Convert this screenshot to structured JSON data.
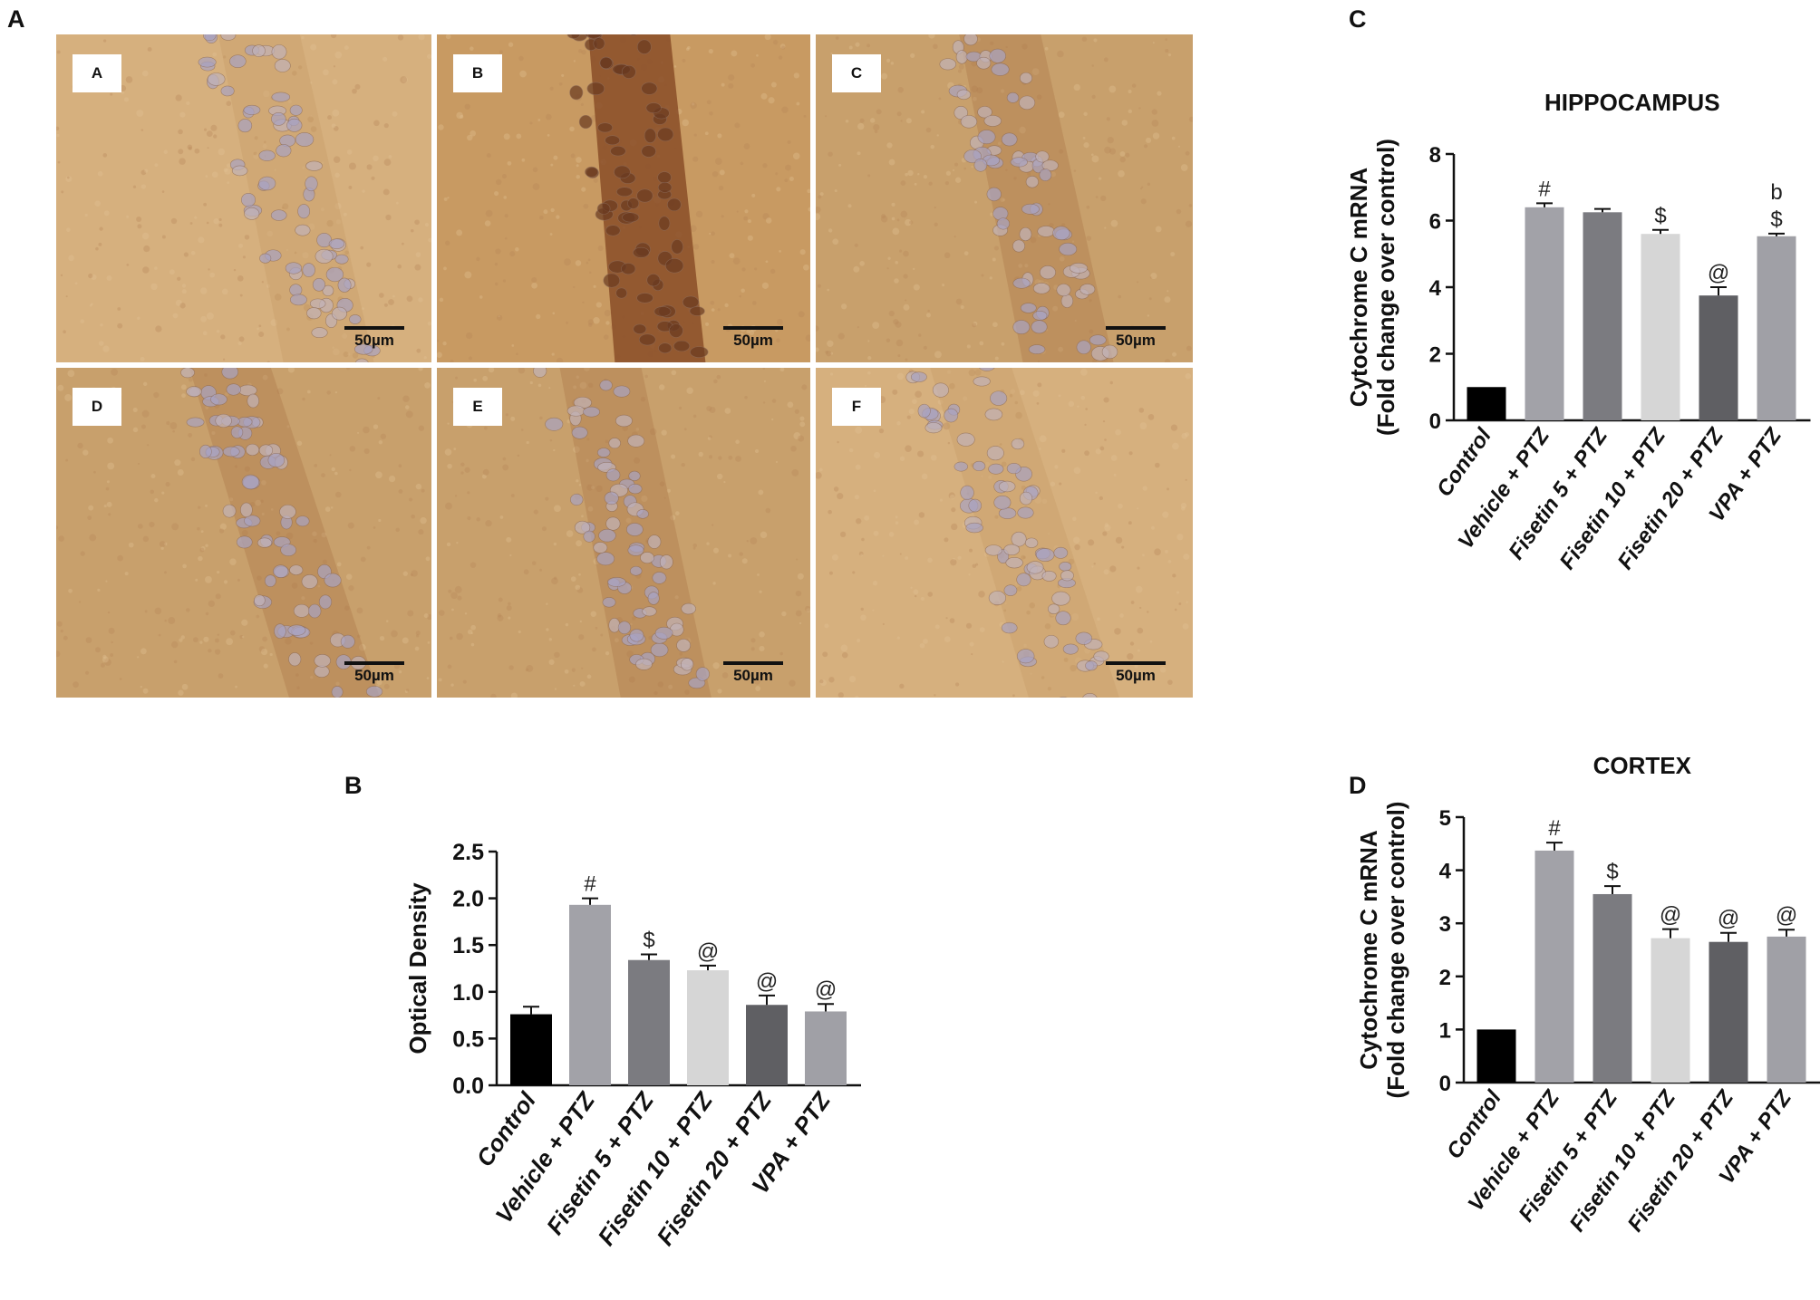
{
  "figure": {
    "panel_labels": [
      "A",
      "B",
      "C",
      "D"
    ]
  },
  "micrographs": [
    {
      "label": "A",
      "scale": "50µm",
      "stain": "light"
    },
    {
      "label": "B",
      "scale": "50µm",
      "stain": "dark"
    },
    {
      "label": "C",
      "scale": "50µm",
      "stain": "medium"
    },
    {
      "label": "D",
      "scale": "50µm",
      "stain": "medium"
    },
    {
      "label": "E",
      "scale": "50µm",
      "stain": "medium"
    },
    {
      "label": "F",
      "scale": "50µm",
      "stain": "light"
    }
  ],
  "colors": {
    "Control": "#000000",
    "Vehicle + PTZ": "#a2a2a8",
    "Fisetin 5 + PTZ": "#7b7b80",
    "Fisetin 10 + PTZ": "#d6d6d6",
    "Fisetin 20 + PTZ": "#5f5f63",
    "VPA + PTZ": "#a0a0a6"
  },
  "chart_data": [
    {
      "id": "chart-b",
      "type": "bar",
      "title": "",
      "xlabel": "",
      "ylabel": "Optical Density",
      "categories": [
        "Control",
        "Vehicle + PTZ",
        "Fisetin 5 + PTZ",
        "Fisetin 10 + PTZ",
        "Fisetin 20 + PTZ",
        "VPA + PTZ"
      ],
      "values": [
        0.76,
        1.93,
        1.34,
        1.23,
        0.86,
        0.79
      ],
      "errors": [
        0.08,
        0.07,
        0.06,
        0.05,
        0.1,
        0.08
      ],
      "annotations": [
        "",
        "#",
        "$",
        "@",
        "@",
        "@"
      ],
      "ylim": [
        0,
        2.5
      ],
      "yticks": [
        "0.0",
        "0.5",
        "1.0",
        "1.5",
        "2.0",
        "2.5"
      ],
      "grid": false
    },
    {
      "id": "chart-c",
      "type": "bar",
      "title": "HIPPOCAMPUS",
      "xlabel": "",
      "ylabel": [
        "Cytochrome C mRNA",
        "(Fold change over control)"
      ],
      "categories": [
        "Control",
        "Vehicle + PTZ",
        "Fisetin 5 + PTZ",
        "Fisetin 10 + PTZ",
        "Fisetin 20 + PTZ",
        "VPA + PTZ"
      ],
      "values": [
        1.0,
        6.4,
        6.25,
        5.6,
        3.75,
        5.53
      ],
      "errors": [
        0.0,
        0.12,
        0.1,
        0.12,
        0.25,
        0.08
      ],
      "annotations": [
        "",
        "#",
        "",
        "$",
        "@",
        "$"
      ],
      "annotations_top": [
        "",
        "",
        "",
        "",
        "",
        "b"
      ],
      "ylim": [
        0,
        8
      ],
      "yticks": [
        "0",
        "2",
        "4",
        "6",
        "8"
      ],
      "grid": false
    },
    {
      "id": "chart-d",
      "type": "bar",
      "title": "CORTEX",
      "xlabel": "",
      "ylabel": [
        "Cytochrome C mRNA",
        "(Fold change over control)"
      ],
      "categories": [
        "Control",
        "Vehicle + PTZ",
        "Fisetin 5 + PTZ",
        "Fisetin 10 + PTZ",
        "Fisetin 20 + PTZ",
        "VPA + PTZ"
      ],
      "values": [
        1.0,
        4.37,
        3.55,
        2.72,
        2.65,
        2.75
      ],
      "errors": [
        0.0,
        0.15,
        0.15,
        0.17,
        0.17,
        0.13
      ],
      "annotations": [
        "",
        "#",
        "$",
        "@",
        "@",
        "@"
      ],
      "ylim": [
        0,
        5
      ],
      "yticks": [
        "0",
        "1",
        "2",
        "3",
        "4",
        "5"
      ],
      "grid": false
    }
  ]
}
